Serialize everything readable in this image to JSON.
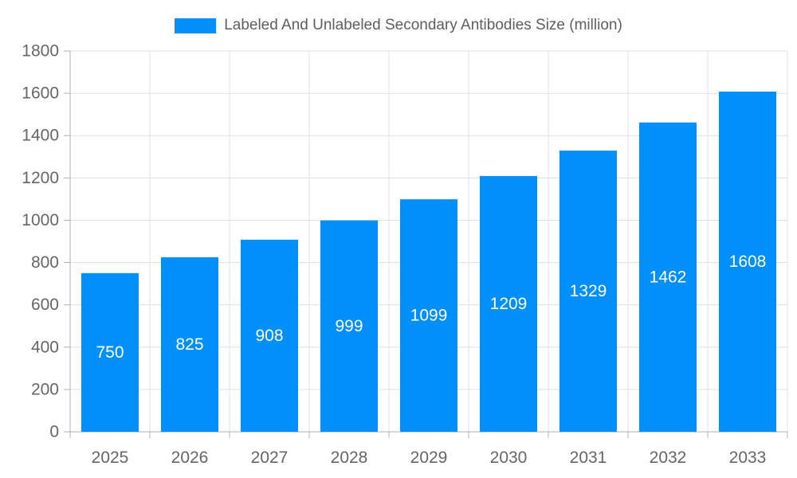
{
  "legend": {
    "label": "Labeled And Unlabeled Secondary Antibodies Size (million)"
  },
  "colors": {
    "bar": "#008FFB",
    "grid": "#e0e0e0",
    "axis_line": "#b1b1b1",
    "tick": "#b1b1b1",
    "axis_label": "#666666",
    "data_label": "#ffffff",
    "legend_text": "#5e5e5e"
  },
  "chart_data": {
    "type": "bar",
    "title": "Labeled And Unlabeled Secondary Antibodies Size (million)",
    "categories": [
      "2025",
      "2026",
      "2027",
      "2028",
      "2029",
      "2030",
      "2031",
      "2032",
      "2033"
    ],
    "series": [
      {
        "name": "Labeled And Unlabeled Secondary Antibodies Size (million)",
        "values": [
          750,
          825,
          908,
          999,
          1099,
          1209,
          1329,
          1462,
          1608
        ]
      }
    ],
    "xlabel": "",
    "ylabel": "",
    "ylim": [
      0,
      1800
    ],
    "ytick_step": 200,
    "grid": true,
    "legend_position": "top",
    "data_labels": true
  }
}
